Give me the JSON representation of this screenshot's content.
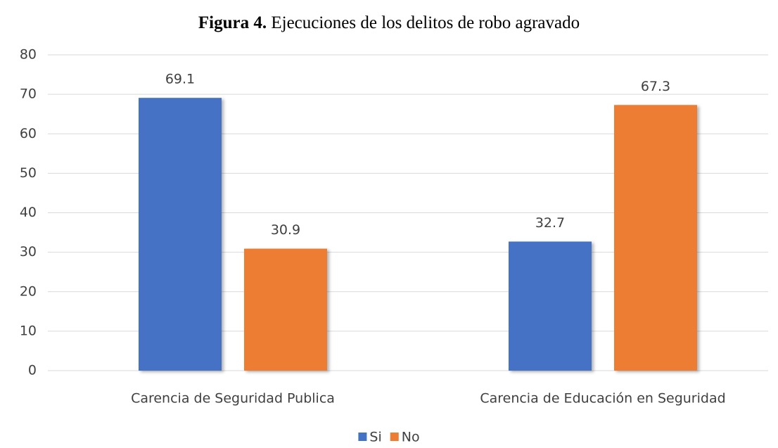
{
  "chart_data": {
    "type": "bar",
    "figure_label": "Figura 4.",
    "title": "Ejecuciones de los delitos de robo agravado",
    "categories": [
      "Carencia de Seguridad Publica",
      "Carencia de Educación en Seguridad"
    ],
    "series": [
      {
        "name": "Si",
        "color": "#4472c4",
        "values": [
          69.1,
          32.7
        ]
      },
      {
        "name": "No",
        "color": "#ed7d31",
        "values": [
          30.9,
          67.3
        ]
      }
    ],
    "ylim": [
      0,
      80
    ],
    "yticks": [
      0,
      10,
      20,
      30,
      40,
      50,
      60,
      70,
      80
    ],
    "grid": true,
    "legend": "bottom"
  }
}
